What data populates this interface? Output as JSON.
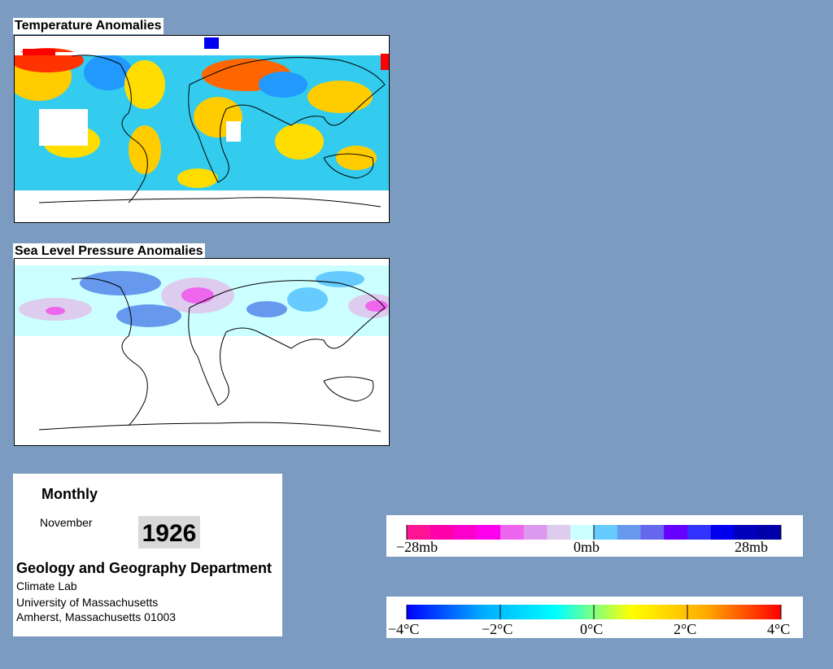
{
  "panels": {
    "temperature_title": "Temperature Anomalies",
    "pressure_title": "Sea Level Pressure Anomalies"
  },
  "info": {
    "frequency": "Monthly",
    "month": "November",
    "year": "1926",
    "department": "Geology and Geography Department",
    "lab": "Climate Lab",
    "university": "University of Massachusetts",
    "address": "Amherst, Massachusetts 01003"
  },
  "legends": {
    "pressure": {
      "labels": [
        "−28mb",
        "0mb",
        "28mb"
      ],
      "colors": [
        "#ff1493",
        "#ff00aa",
        "#ff00cc",
        "#ff00ee",
        "#ee66ee",
        "#dd99ee",
        "#ddccee",
        "#ccffff",
        "#66ccff",
        "#6699ee",
        "#6666ee",
        "#6600ff",
        "#3333ff",
        "#0000ee",
        "#0000bb",
        "#0000aa"
      ]
    },
    "temperature": {
      "labels": [
        "−4°C",
        "−2°C",
        "0°C",
        "2°C",
        "4°C"
      ],
      "gradient_stops": [
        "#0000ff",
        "#00aaff",
        "#00ffff",
        "#ffff00",
        "#ffaa00",
        "#ff0000"
      ]
    }
  }
}
